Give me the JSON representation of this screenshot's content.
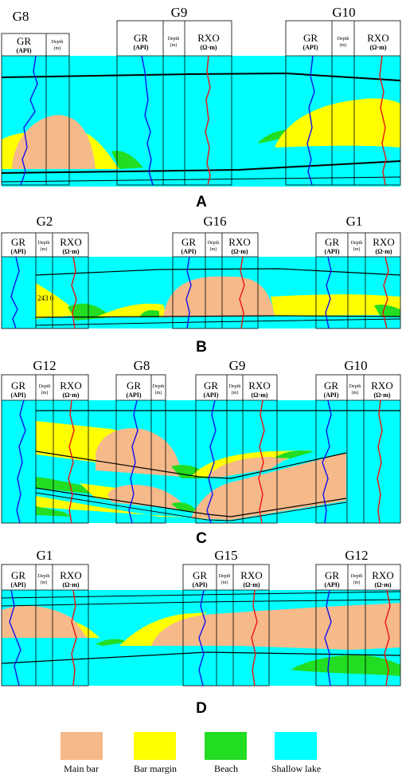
{
  "colors": {
    "main_bar": "#F5B98A",
    "bar_margin": "#FFFF00",
    "beach": "#22DD22",
    "shallow_lake": "#00FFFF",
    "gr_curve": "#1010EE",
    "rxo_curve": "#EE1111"
  },
  "track_labels": {
    "gr": "GR",
    "gr_unit": "(API)",
    "depth": "Depth",
    "depth_unit": "(m)",
    "rxo": "RXO",
    "rxo_unit": "(Ω·m)"
  },
  "panels": [
    {
      "label": "A",
      "wells": [
        "G8",
        "G9",
        "G10"
      ],
      "depth_note": ""
    },
    {
      "label": "B",
      "wells": [
        "G2",
        "G16",
        "G1"
      ],
      "depth_note": "243 0"
    },
    {
      "label": "C",
      "wells": [
        "G12",
        "G8",
        "G9",
        "G10"
      ],
      "depth_note": ""
    },
    {
      "label": "D",
      "wells": [
        "G1",
        "G15",
        "G12"
      ],
      "depth_note": ""
    }
  ],
  "legend": [
    {
      "label": "Main bar",
      "color": "#F5B98A"
    },
    {
      "label": "Bar margin",
      "color": "#FFFF00"
    },
    {
      "label": "Beach",
      "color": "#22DD22"
    },
    {
      "label": "Shallow lake",
      "color": "#00FFFF"
    }
  ]
}
